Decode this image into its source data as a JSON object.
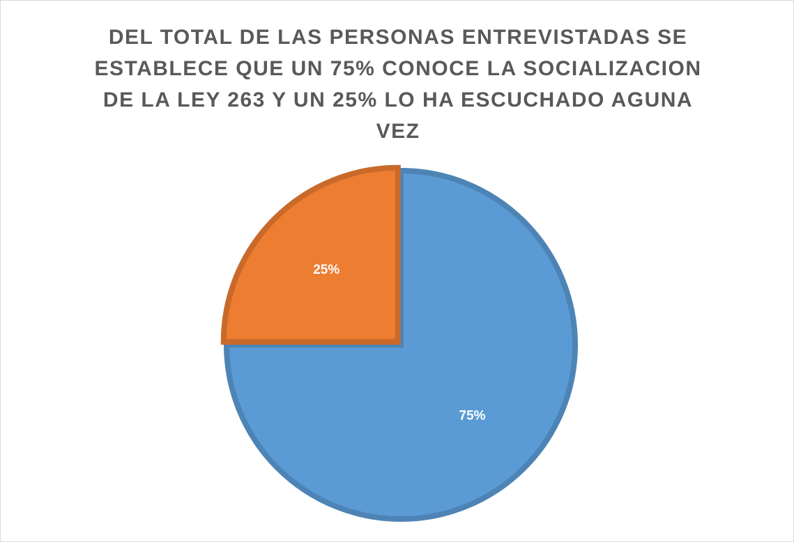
{
  "chart_data": {
    "type": "pie",
    "title": "DEL TOTAL DE LAS PERSONAS ENTREVISTADAS SE ESTABLECE QUE UN 75% CONOCE LA SOCIALIZACION DE LA LEY 263 Y UN 25% LO HA ESCUCHADO AGUNA VEZ",
    "values": [
      75,
      25
    ],
    "value_labels": [
      "75%",
      "25%"
    ],
    "colors": [
      "#5b9bd5",
      "#ed7d31"
    ]
  }
}
